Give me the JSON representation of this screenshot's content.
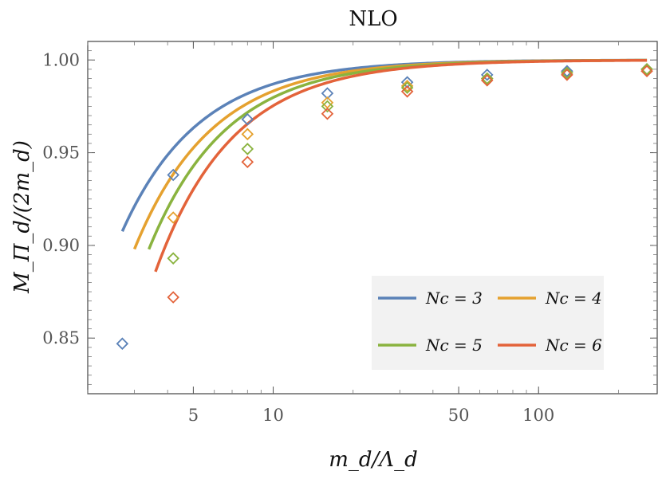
{
  "chart_data": {
    "type": "line",
    "title": "NLO",
    "xlabel": "m_d/Λ_d",
    "ylabel": "M_Π_d/(2m_d)",
    "xscale": "log",
    "xlim": [
      2.0,
      280
    ],
    "ylim": [
      0.82,
      1.01
    ],
    "xticks": [
      {
        "value": 5,
        "label": "5"
      },
      {
        "value": 10,
        "label": "10"
      },
      {
        "value": 50,
        "label": "50"
      },
      {
        "value": 100,
        "label": "100"
      }
    ],
    "yticks": [
      {
        "value": 0.85,
        "label": "0.85"
      },
      {
        "value": 0.9,
        "label": "0.90"
      },
      {
        "value": 0.95,
        "label": "0.95"
      },
      {
        "value": 1.0,
        "label": "1.00"
      }
    ],
    "legend_position": "bottom-right",
    "series": [
      {
        "name": "N_c = 3",
        "legend_label": "Nc = 3",
        "color": "#5b82b8",
        "curve_start": 2.7,
        "curve_coeff": 0.41,
        "markers": {
          "x": [
            2.7,
            4.2,
            8,
            16,
            32,
            64,
            128,
            256
          ],
          "y": [
            0.847,
            0.938,
            0.968,
            0.982,
            0.988,
            0.992,
            0.994,
            0.995
          ]
        }
      },
      {
        "name": "N_c = 4",
        "legend_label": "Nc = 4",
        "color": "#e5a12f",
        "curve_start": 3.0,
        "curve_coeff": 0.53,
        "markers": {
          "x": [
            4.2,
            8,
            16,
            32,
            64,
            128,
            256
          ],
          "y": [
            0.915,
            0.96,
            0.977,
            0.986,
            0.99,
            0.993,
            0.995
          ]
        }
      },
      {
        "name": "N_c = 5",
        "legend_label": "Nc = 5",
        "color": "#8ab33f",
        "curve_start": 3.4,
        "curve_coeff": 0.64,
        "markers": {
          "x": [
            4.2,
            8,
            16,
            32,
            64,
            128,
            256
          ],
          "y": [
            0.893,
            0.952,
            0.975,
            0.985,
            0.99,
            0.993,
            0.995
          ]
        }
      },
      {
        "name": "N_c = 6",
        "legend_label": "Nc = 6",
        "color": "#e3633a",
        "curve_start": 3.6,
        "curve_coeff": 0.78,
        "markers": {
          "x": [
            4.2,
            8,
            16,
            32,
            64,
            128,
            256
          ],
          "y": [
            0.872,
            0.945,
            0.971,
            0.983,
            0.989,
            0.992,
            0.994
          ]
        }
      }
    ]
  }
}
